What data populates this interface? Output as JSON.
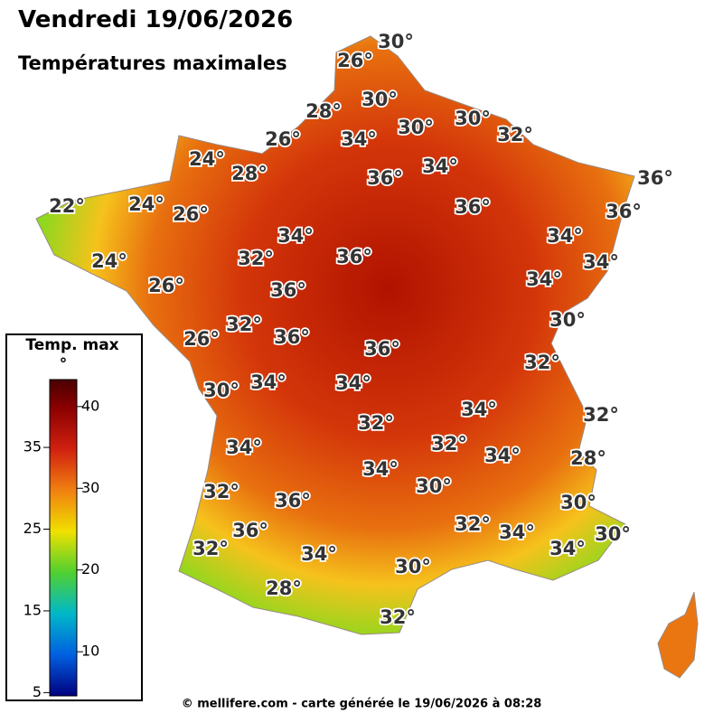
{
  "header": {
    "title": "Vendredi 19/06/2026",
    "subtitle": "Températures maximales"
  },
  "map": {
    "labels": [
      "30°",
      "26°",
      "30°",
      "28°",
      "30°",
      "30°",
      "26°",
      "34°",
      "32°",
      "24°",
      "28°",
      "36°",
      "34°",
      "36°",
      "22°",
      "24°",
      "26°",
      "36°",
      "36°",
      "34°",
      "34°",
      "32°",
      "36°",
      "24°",
      "34°",
      "26°",
      "34°",
      "36°",
      "30°",
      "32°",
      "36°",
      "26°",
      "36°",
      "32°",
      "30°",
      "34°",
      "34°",
      "34°",
      "32°",
      "32°",
      "34°",
      "32°",
      "34°",
      "28°",
      "34°",
      "30°",
      "32°",
      "36°",
      "30°",
      "36°",
      "32°",
      "34°",
      "30°",
      "32°",
      "34°",
      "34°",
      "30°",
      "28°",
      "32°"
    ]
  },
  "legend": {
    "title": "Temp. max",
    "unit": "°",
    "range": [
      4.6,
      43.3
    ],
    "ticks": [
      5,
      10,
      15,
      20,
      25,
      30,
      35,
      40
    ]
  },
  "footer": {
    "credit": "© mellifere.com - carte générée le 19/06/2026 à 08:28"
  }
}
